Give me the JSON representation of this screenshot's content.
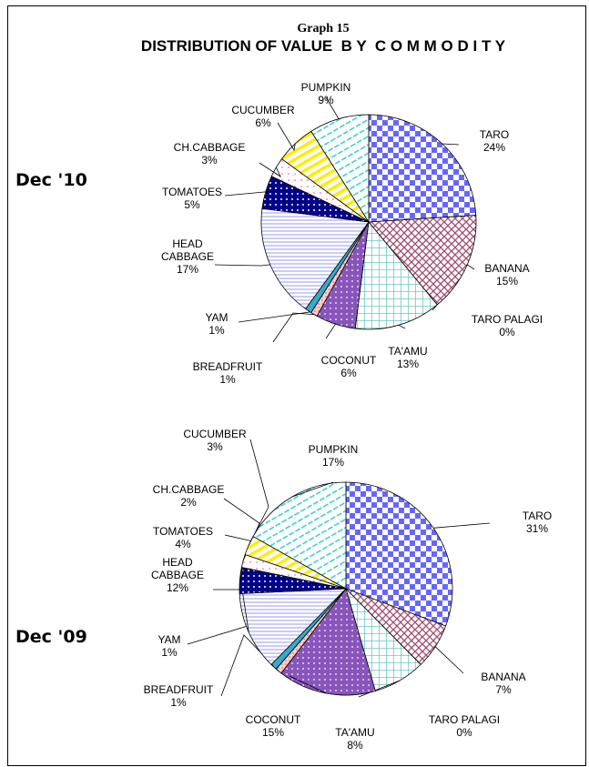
{
  "header": {
    "graph_number": "Graph 15",
    "title": "DISTRIBUTION OF VALUE  B Y  C O M M O D I T Y"
  },
  "colors": {
    "TARO": "#6666ff",
    "BANANA": "#a05070",
    "TARO PALAGI": "#ffffff",
    "TA'AMU": "#66cccc",
    "COCONUT": "#8855bb",
    "BREADFRUIT": "#ff9999",
    "YAM": "#33aacc",
    "HEAD CABBAGE": "#9999ee",
    "TOMATOES": "#000088",
    "CH.CABBAGE": "#ff66cc",
    "CUCUMBER": "#ffee00",
    "PUMPKIN": "#33cccc"
  },
  "chart_data": [
    {
      "type": "pie",
      "panel_label": "Dec '10",
      "categories": [
        "TARO",
        "BANANA",
        "TARO PALAGI",
        "TA'AMU",
        "COCONUT",
        "BREADFRUIT",
        "YAM",
        "HEAD CABBAGE",
        "TOMATOES",
        "CH.CABBAGE",
        "CUCUMBER",
        "PUMPKIN"
      ],
      "values": [
        24,
        15,
        0,
        13,
        6,
        1,
        1,
        17,
        5,
        3,
        6,
        9
      ],
      "labels": [
        "24%",
        "15%",
        "0%",
        "13%",
        "6%",
        "1%",
        "1%",
        "17%",
        "5%",
        "3%",
        "6%",
        "9%"
      ]
    },
    {
      "type": "pie",
      "panel_label": "Dec '09",
      "categories": [
        "TARO",
        "BANANA",
        "TARO PALAGI",
        "TA'AMU",
        "COCONUT",
        "BREADFRUIT",
        "YAM",
        "HEAD CABBAGE",
        "TOMATOES",
        "CH.CABBAGE",
        "CUCUMBER",
        "PUMPKIN"
      ],
      "values": [
        31,
        7,
        0,
        8,
        15,
        1,
        1,
        12,
        4,
        2,
        3,
        17
      ],
      "labels": [
        "31%",
        "7%",
        "0%",
        "8%",
        "15%",
        "1%",
        "1%",
        "12%",
        "4%",
        "2%",
        "3%",
        "17%"
      ]
    }
  ]
}
